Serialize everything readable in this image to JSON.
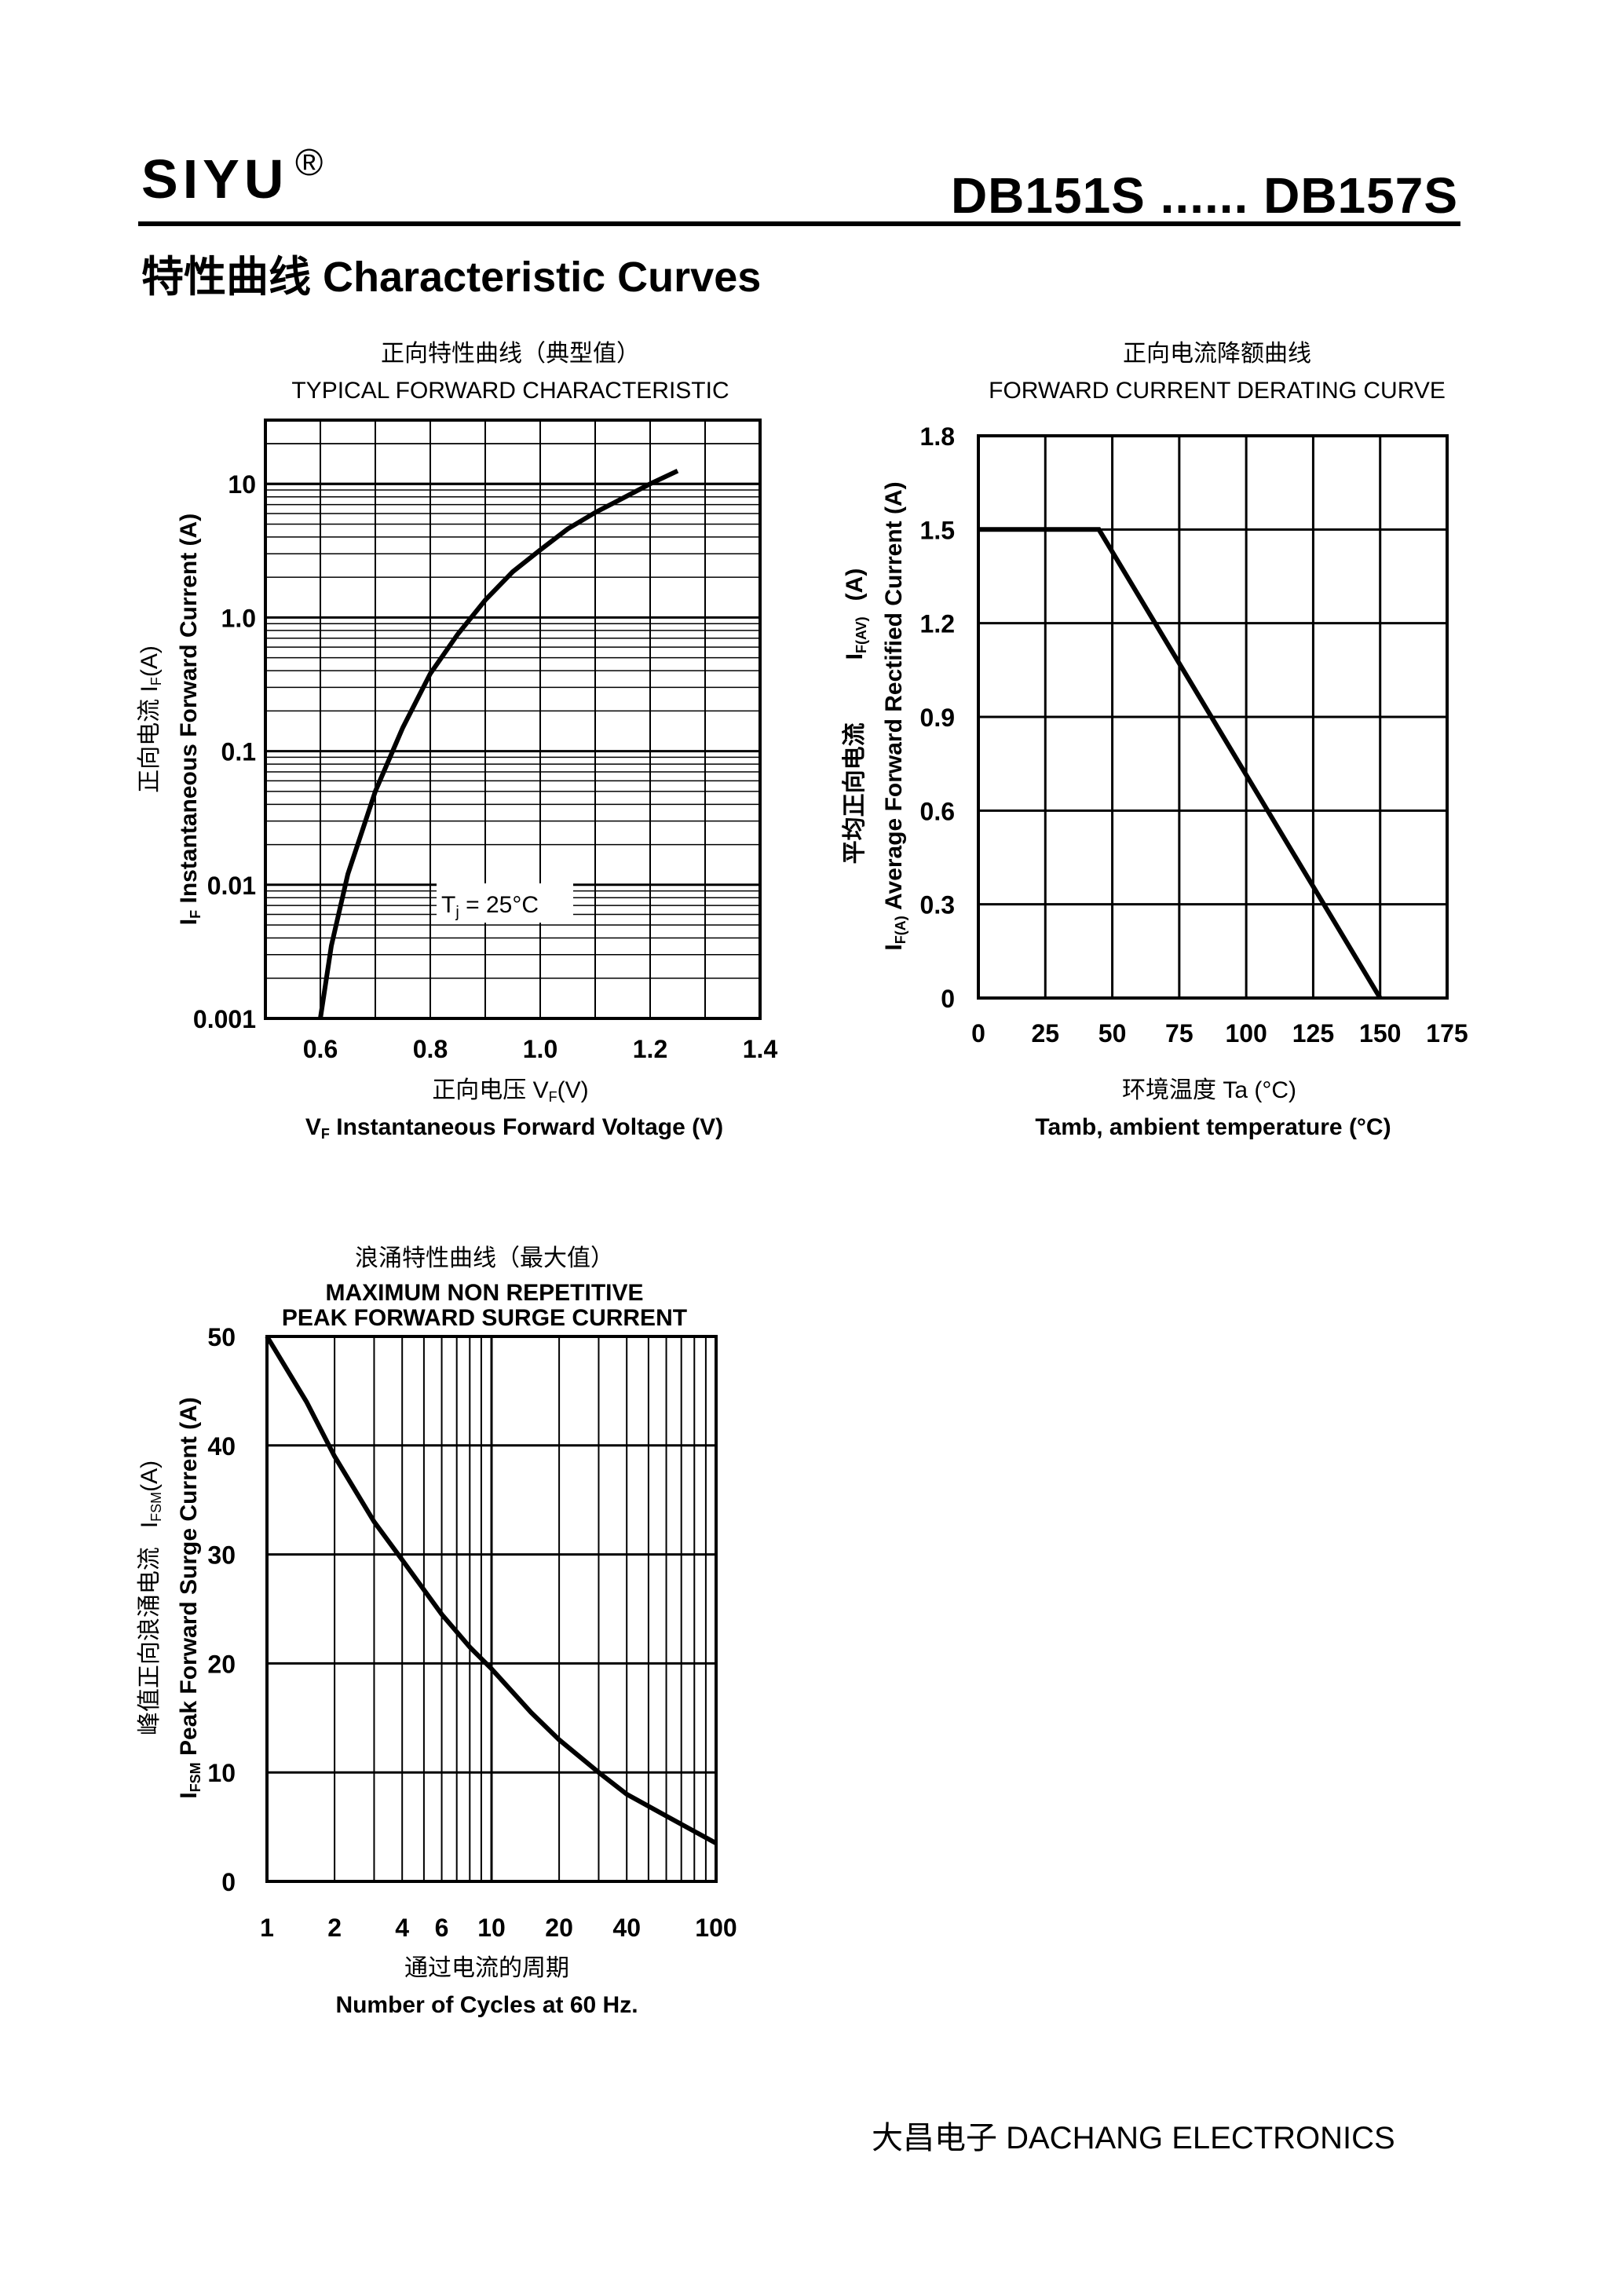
{
  "header": {
    "brand": "SIYU",
    "brand_mark": "®",
    "part_range": "DB151S ...... DB157S",
    "section_title": "特性曲线   Characteristic Curves"
  },
  "footer": {
    "company": "大昌电子   DACHANG ELECTRONICS"
  },
  "chart_data": [
    {
      "type": "line",
      "title_cn": "正向特性曲线（典型值）",
      "title": "TYPICAL FORWARD CHARACTERISTIC",
      "xlabel_cn": "正向电压   V",
      "xlabel_cn_sub": "F",
      "xlabel_cn_unit": "(V)",
      "xlabel_sym": "V",
      "xlabel_sym_sub": "F",
      "xlabel": "Instantaneous Forward Voltage (V)",
      "ylabel_cn": "正向电流   I",
      "ylabel_cn_sub": "F",
      "ylabel_cn_unit": "(A)",
      "ylabel_sym": "I",
      "ylabel_sym_sub": "F",
      "ylabel": "Instantaneous Forward Current (A)",
      "xlim": [
        0.5,
        1.4
      ],
      "ylim": [
        0.001,
        30
      ],
      "yscale": "log",
      "x_ticks": [
        "0.6",
        "0.8",
        "1.0",
        "1.2",
        "1.4"
      ],
      "x_tick_values": [
        0.6,
        0.8,
        1.0,
        1.2,
        1.4
      ],
      "y_ticks": [
        "0.001",
        "0.01",
        "0.1",
        "1.0",
        "10"
      ],
      "y_tick_values": [
        0.001,
        0.01,
        0.1,
        1.0,
        10
      ],
      "annotation": "T",
      "annotation_sub": "j",
      "annotation_rest": " = 25°C",
      "grid": true,
      "series": [
        {
          "x": [
            0.6,
            0.62,
            0.65,
            0.7,
            0.75,
            0.8,
            0.85,
            0.9,
            0.95,
            1.0,
            1.05,
            1.1,
            1.15,
            1.2,
            1.25
          ],
          "y": [
            0.001,
            0.0035,
            0.012,
            0.05,
            0.15,
            0.38,
            0.75,
            1.35,
            2.2,
            3.2,
            4.6,
            6.1,
            7.8,
            10.0,
            12.5
          ]
        }
      ]
    },
    {
      "type": "line",
      "title_cn": "正向电流降额曲线",
      "title": "FORWARD CURRENT DERATING CURVE",
      "xlabel_cn": "环境温度  Ta (°C)",
      "xlabel": "Tamb, ambient temperature (°C)",
      "ylabel_cn": "平均正向电流",
      "ylabel_mid": "I",
      "ylabel_mid_sub": "F(AV)",
      "ylabel_mid_unit": "(A)",
      "ylabel_sym": "I",
      "ylabel_sym_sub": "F(A)",
      "ylabel": "Average Forward Rectified Current (A)",
      "xlim": [
        0,
        175
      ],
      "ylim": [
        0,
        1.8
      ],
      "x_ticks": [
        "0",
        "25",
        "50",
        "75",
        "100",
        "125",
        "150",
        "175"
      ],
      "x_tick_values": [
        0,
        25,
        50,
        75,
        100,
        125,
        150,
        175
      ],
      "y_ticks": [
        "0",
        "0.3",
        "0.6",
        "0.9",
        "1.2",
        "1.5",
        "1.8"
      ],
      "y_tick_values": [
        0,
        0.3,
        0.6,
        0.9,
        1.2,
        1.5,
        1.8
      ],
      "grid": true,
      "series": [
        {
          "x": [
            0,
            45,
            150
          ],
          "y": [
            1.5,
            1.5,
            0
          ]
        }
      ]
    },
    {
      "type": "line",
      "title_cn": "浪涌特性曲线（最大值）",
      "title_line1": "MAXIMUM NON REPETITIVE",
      "title_line2": "PEAK FORWARD SURGE CURRENT",
      "xlabel_cn": "通过电流的周期",
      "xlabel": "Number  of  Cycles at 60 Hz.",
      "ylabel_cn": "峰值正向浪涌电流",
      "ylabel_mid": "I",
      "ylabel_mid_sub": "FSM",
      "ylabel_mid_unit": "(A)",
      "ylabel_sym": "I",
      "ylabel_sym_sub": "FSM",
      "ylabel": "Peak Forward Surge Current (A)",
      "xscale": "log",
      "xlim": [
        1,
        100
      ],
      "ylim": [
        0,
        50
      ],
      "x_ticks": [
        "1",
        "2",
        "4",
        "6",
        "10",
        "20",
        "40",
        "100"
      ],
      "x_tick_values": [
        1,
        2,
        4,
        6,
        10,
        20,
        40,
        100
      ],
      "y_ticks": [
        "0",
        "10",
        "20",
        "30",
        "40",
        "50"
      ],
      "y_tick_values": [
        0,
        10,
        20,
        30,
        40,
        50
      ],
      "grid": true,
      "series": [
        {
          "x": [
            1,
            1.5,
            2,
            3,
            4,
            6,
            8,
            10,
            15,
            20,
            30,
            40,
            60,
            100
          ],
          "y": [
            50,
            44,
            39,
            33,
            29.5,
            24.5,
            21.5,
            19.5,
            15.5,
            13,
            10,
            8,
            6,
            3.5
          ]
        }
      ]
    }
  ]
}
